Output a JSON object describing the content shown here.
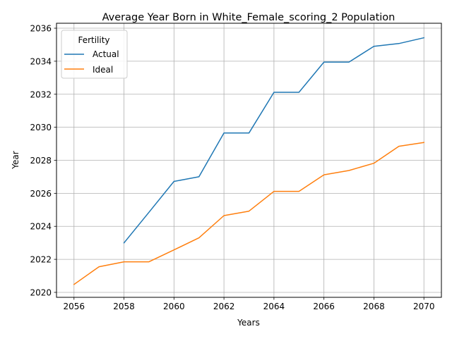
{
  "chart_data": {
    "type": "line",
    "title": "Average Year Born in White_Female_scoring_2 Population",
    "xlabel": "Years",
    "ylabel": "Year",
    "xlim": [
      2055.3,
      2070.7
    ],
    "ylim": [
      2019.7,
      2036.3
    ],
    "xticks": [
      2056,
      2058,
      2060,
      2062,
      2064,
      2066,
      2068,
      2070
    ],
    "yticks": [
      2020,
      2022,
      2024,
      2026,
      2028,
      2030,
      2032,
      2034,
      2036
    ],
    "grid": true,
    "legend": {
      "title": "Fertility",
      "placement": "upper left"
    },
    "series": [
      {
        "name": "Actual",
        "color": "#1f77b4",
        "x": [
          2058,
          2059,
          2060,
          2061,
          2062,
          2063,
          2064,
          2065,
          2066,
          2067,
          2068,
          2069,
          2070
        ],
        "y": [
          2023.0,
          2024.85,
          2026.72,
          2027.0,
          2029.65,
          2029.65,
          2032.12,
          2032.12,
          2033.95,
          2033.95,
          2034.9,
          2035.07,
          2035.42
        ]
      },
      {
        "name": "Ideal",
        "color": "#ff7f0e",
        "x": [
          2056,
          2057,
          2058,
          2059,
          2060,
          2061,
          2062,
          2063,
          2064,
          2065,
          2066,
          2067,
          2068,
          2069,
          2070
        ],
        "y": [
          2020.48,
          2021.55,
          2021.85,
          2021.85,
          2022.57,
          2023.3,
          2024.65,
          2024.92,
          2026.12,
          2026.12,
          2027.12,
          2027.38,
          2027.82,
          2028.85,
          2029.08
        ]
      }
    ]
  }
}
